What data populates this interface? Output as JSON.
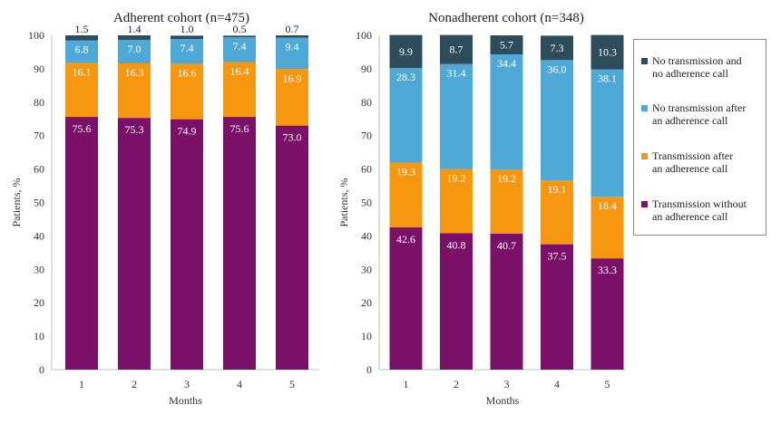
{
  "colors": {
    "transmission_without_call": "#7b1068",
    "transmission_after_call": "#f7960f",
    "no_transmission_after_call": "#4fa9d6",
    "no_transmission_no_call": "#2d4d5c"
  },
  "legend": [
    {
      "label": "No transmission and\nno adherence call",
      "color": "#2d4d5c"
    },
    {
      "label": "No transmission after\nan adherence call",
      "color": "#4fa9d6"
    },
    {
      "label": "Transmission after\nan adherence call",
      "color": "#f7960f"
    },
    {
      "label": "Transmission without\nan adherence call",
      "color": "#7b1068"
    }
  ],
  "chart_data": [
    {
      "type": "bar",
      "stacked": true,
      "title": "Adherent cohort (n=475)",
      "xlabel": "Months",
      "ylabel": "Patients, %",
      "ylim": [
        0,
        100
      ],
      "yticks": [
        "0",
        "10",
        "20",
        "30",
        "40",
        "50",
        "60",
        "70",
        "80",
        "90",
        "100"
      ],
      "categories": [
        "1",
        "2",
        "3",
        "4",
        "5"
      ],
      "series": [
        {
          "name": "Transmission without an adherence call",
          "values": [
            75.6,
            75.3,
            74.9,
            75.6,
            73.0
          ],
          "labels": [
            "75.6",
            "75.3",
            "74.9",
            "75.6",
            "73.0"
          ]
        },
        {
          "name": "Transmission after an adherence call",
          "values": [
            16.1,
            16.3,
            16.6,
            16.4,
            16.9
          ],
          "labels": [
            "16.1",
            "16.3",
            "16.6",
            "16.4",
            "16.9"
          ]
        },
        {
          "name": "No transmission after an adherence call",
          "values": [
            6.8,
            7.0,
            7.4,
            7.4,
            9.4
          ],
          "labels": [
            "6.8",
            "7.0",
            "7.4",
            "7.4",
            "9.4"
          ]
        },
        {
          "name": "No transmission and no adherence call",
          "values": [
            1.5,
            1.4,
            1.0,
            0.5,
            0.7
          ],
          "labels": [
            "1.5",
            "1.4",
            "1.0",
            "0.5",
            "0.7"
          ]
        }
      ]
    },
    {
      "type": "bar",
      "stacked": true,
      "title": "Nonadherent cohort (n=348)",
      "xlabel": "Months",
      "ylabel": "Patients, %",
      "ylim": [
        0,
        100
      ],
      "yticks": [
        "0",
        "10",
        "20",
        "30",
        "40",
        "50",
        "60",
        "70",
        "80",
        "90",
        "100"
      ],
      "categories": [
        "1",
        "2",
        "3",
        "4",
        "5"
      ],
      "legend_position": "right",
      "series": [
        {
          "name": "Transmission without an adherence call",
          "values": [
            42.6,
            40.8,
            40.7,
            37.5,
            33.3
          ],
          "labels": [
            "42.6",
            "40.8",
            "40.7",
            "37.5",
            "33.3"
          ]
        },
        {
          "name": "Transmission after an adherence call",
          "values": [
            19.3,
            19.2,
            19.2,
            19.1,
            18.4
          ],
          "labels": [
            "19.3",
            "19.2",
            "19.2",
            "19.1",
            "18.4"
          ]
        },
        {
          "name": "No transmission after an adherence call",
          "values": [
            28.3,
            31.4,
            34.4,
            36.0,
            38.1
          ],
          "labels": [
            "28.3",
            "31.4",
            "34.4",
            "36.0",
            "38.1"
          ]
        },
        {
          "name": "No transmission and no adherence call",
          "values": [
            9.9,
            8.7,
            5.7,
            7.3,
            10.3
          ],
          "labels": [
            "9.9",
            "8.7",
            "5.7",
            "7.3",
            "10.3"
          ]
        }
      ]
    }
  ]
}
